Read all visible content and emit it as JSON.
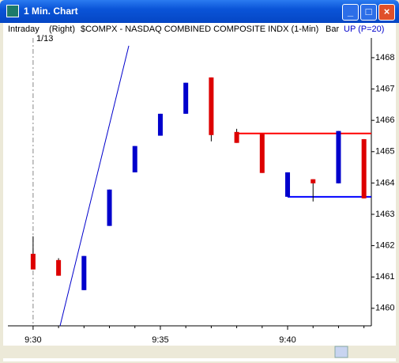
{
  "window": {
    "title": "1 Min. Chart"
  },
  "header": {
    "mode": "Intraday",
    "axis": "(Right)",
    "symbol": "$COMPX - NASDAQ COMBINED COMPOSITE INDX (1-Min)",
    "style": "Bar",
    "indicator": "UP (P=20)"
  },
  "chart_data": {
    "type": "candlestick",
    "date_label": "1/13",
    "categories": [
      "9:30",
      null,
      null,
      null,
      null,
      "9:35",
      null,
      null,
      null,
      null,
      "9:40",
      null,
      null,
      null
    ],
    "open": [
      1461.74,
      1461.54,
      1460.58,
      1462.63,
      1464.34,
      1465.51,
      1466.21,
      1467.37,
      1465.63,
      1465.56,
      1463.56,
      1464.12,
      1463.99,
      1465.4
    ],
    "high": [
      1462.3,
      1461.6,
      1461.67,
      1463.79,
      1465.18,
      1466.21,
      1467.2,
      1467.37,
      1465.73,
      1465.56,
      1464.34,
      1464.12,
      1465.66,
      1465.4
    ],
    "low": [
      1461.24,
      1461.04,
      1460.58,
      1462.63,
      1464.34,
      1465.51,
      1466.21,
      1465.33,
      1465.28,
      1464.32,
      1463.56,
      1463.41,
      1463.99,
      1463.51
    ],
    "close": [
      1461.24,
      1461.04,
      1461.67,
      1463.79,
      1465.18,
      1466.21,
      1467.2,
      1465.53,
      1465.28,
      1464.32,
      1464.34,
      1463.99,
      1465.66,
      1463.51
    ],
    "up_color": "#0000cc",
    "down_color": "#dd0000",
    "xlim": [
      -0.99,
      13.29
    ],
    "ylim": [
      1459.44,
      1468.63
    ],
    "yticks": [
      1460,
      1461,
      1462,
      1463,
      1464,
      1465,
      1466,
      1467,
      1468
    ],
    "lines": [
      {
        "color": "#0000cc",
        "width": 1,
        "x": [
          1.06,
          3.76
        ],
        "y": [
          1459.44,
          1468.38
        ]
      },
      {
        "color": "#ff0000",
        "width": 2,
        "x": [
          8,
          13.29
        ],
        "y": [
          1465.58,
          1465.58
        ]
      },
      {
        "color": "#0000ff",
        "width": 2,
        "x": [
          10,
          13.29
        ],
        "y": [
          1463.56,
          1463.56
        ]
      }
    ]
  }
}
